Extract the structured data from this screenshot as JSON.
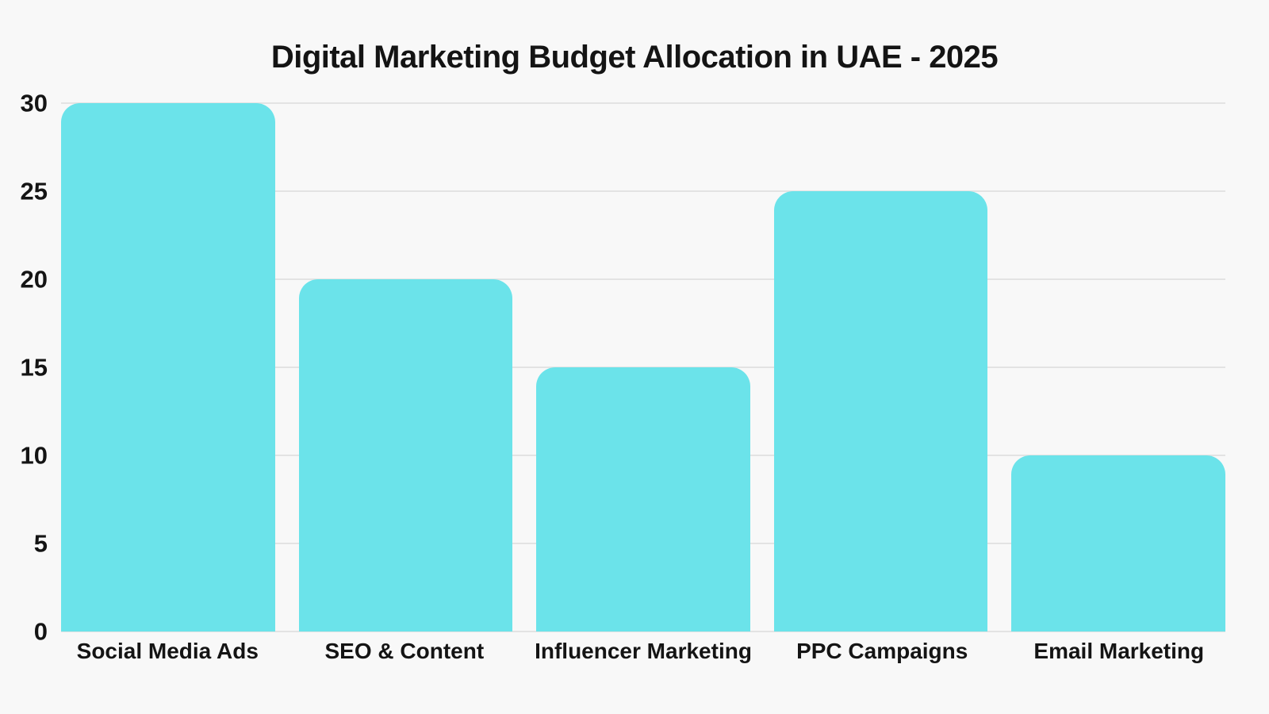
{
  "title": "Digital Marketing Budget Allocation in UAE - 2025",
  "colors": {
    "background": "#f8f8f8",
    "bar": "#6be3ea",
    "gridline": "#e3e3e3",
    "text": "#141414"
  },
  "chart_data": {
    "type": "bar",
    "title": "Digital Marketing Budget Allocation in UAE - 2025",
    "categories": [
      "Social Media Ads",
      "SEO & Content",
      "Influencer Marketing",
      "PPC Campaigns",
      "Email Marketing"
    ],
    "values": [
      30,
      20,
      15,
      25,
      10
    ],
    "xlabel": "",
    "ylabel": "",
    "ylim": [
      0,
      30
    ],
    "yticks": [
      0,
      5,
      10,
      15,
      20,
      25,
      30
    ],
    "grid": true,
    "legend_position": "none",
    "bar_color": "#6be3ea"
  }
}
